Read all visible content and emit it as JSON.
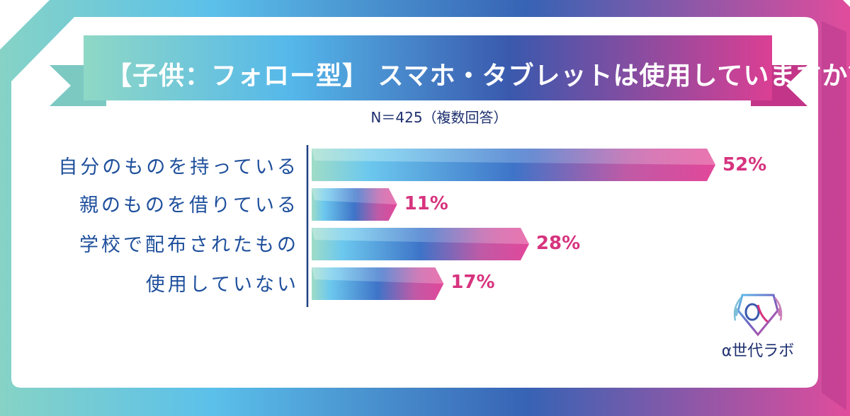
{
  "header": {
    "title": "【子供：フォロー型】 スマホ・タブレットは使用していますか？",
    "subtitle": "N＝425（複数回答）"
  },
  "logo": {
    "text": "α世代ラボ",
    "mark": "alpha-shield-laurel-icon"
  },
  "colors": {
    "frame_left": "#7ecfc9",
    "frame_mid": "#3a7bd5",
    "frame_right": "#e0489a",
    "label_blue": "#1e4f9c",
    "value_pink": "#d6337e"
  },
  "chart_data": {
    "type": "bar",
    "orientation": "horizontal",
    "categories": [
      "自分のものを持っている",
      "親のものを借りている",
      "学校で配布されたもの",
      "使用していない"
    ],
    "values": [
      52,
      11,
      28,
      17
    ],
    "value_labels": [
      "52%",
      "11%",
      "28%",
      "17%"
    ],
    "unit": "%",
    "xlim": [
      0,
      52
    ],
    "title": "【子供：フォロー型】 スマホ・タブレットは使用していますか？",
    "subtitle": "N＝425（複数回答）",
    "grid": false,
    "legend": "none"
  }
}
